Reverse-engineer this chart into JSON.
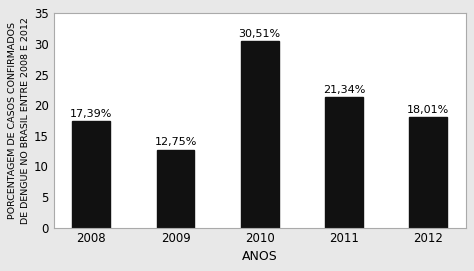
{
  "categories": [
    "2008",
    "2009",
    "2010",
    "2011",
    "2012"
  ],
  "values": [
    17.39,
    12.75,
    30.51,
    21.34,
    18.01
  ],
  "labels": [
    "17,39%",
    "12,75%",
    "30,51%",
    "21,34%",
    "18,01%"
  ],
  "bar_color": "#111111",
  "xlabel": "ANOS",
  "ylabel": "PORCENTAGEM DE CASOS CONFIRMADOS\nDE DENGUE NO BRASIL ENTRE 2008 E 2012",
  "ylim": [
    0,
    35
  ],
  "yticks": [
    0,
    5,
    10,
    15,
    20,
    25,
    30,
    35
  ],
  "background_color": "#ffffff",
  "fig_background_color": "#e8e8e8",
  "xlabel_fontsize": 9,
  "ylabel_fontsize": 6.8,
  "tick_fontsize": 8.5,
  "label_fontsize": 8
}
